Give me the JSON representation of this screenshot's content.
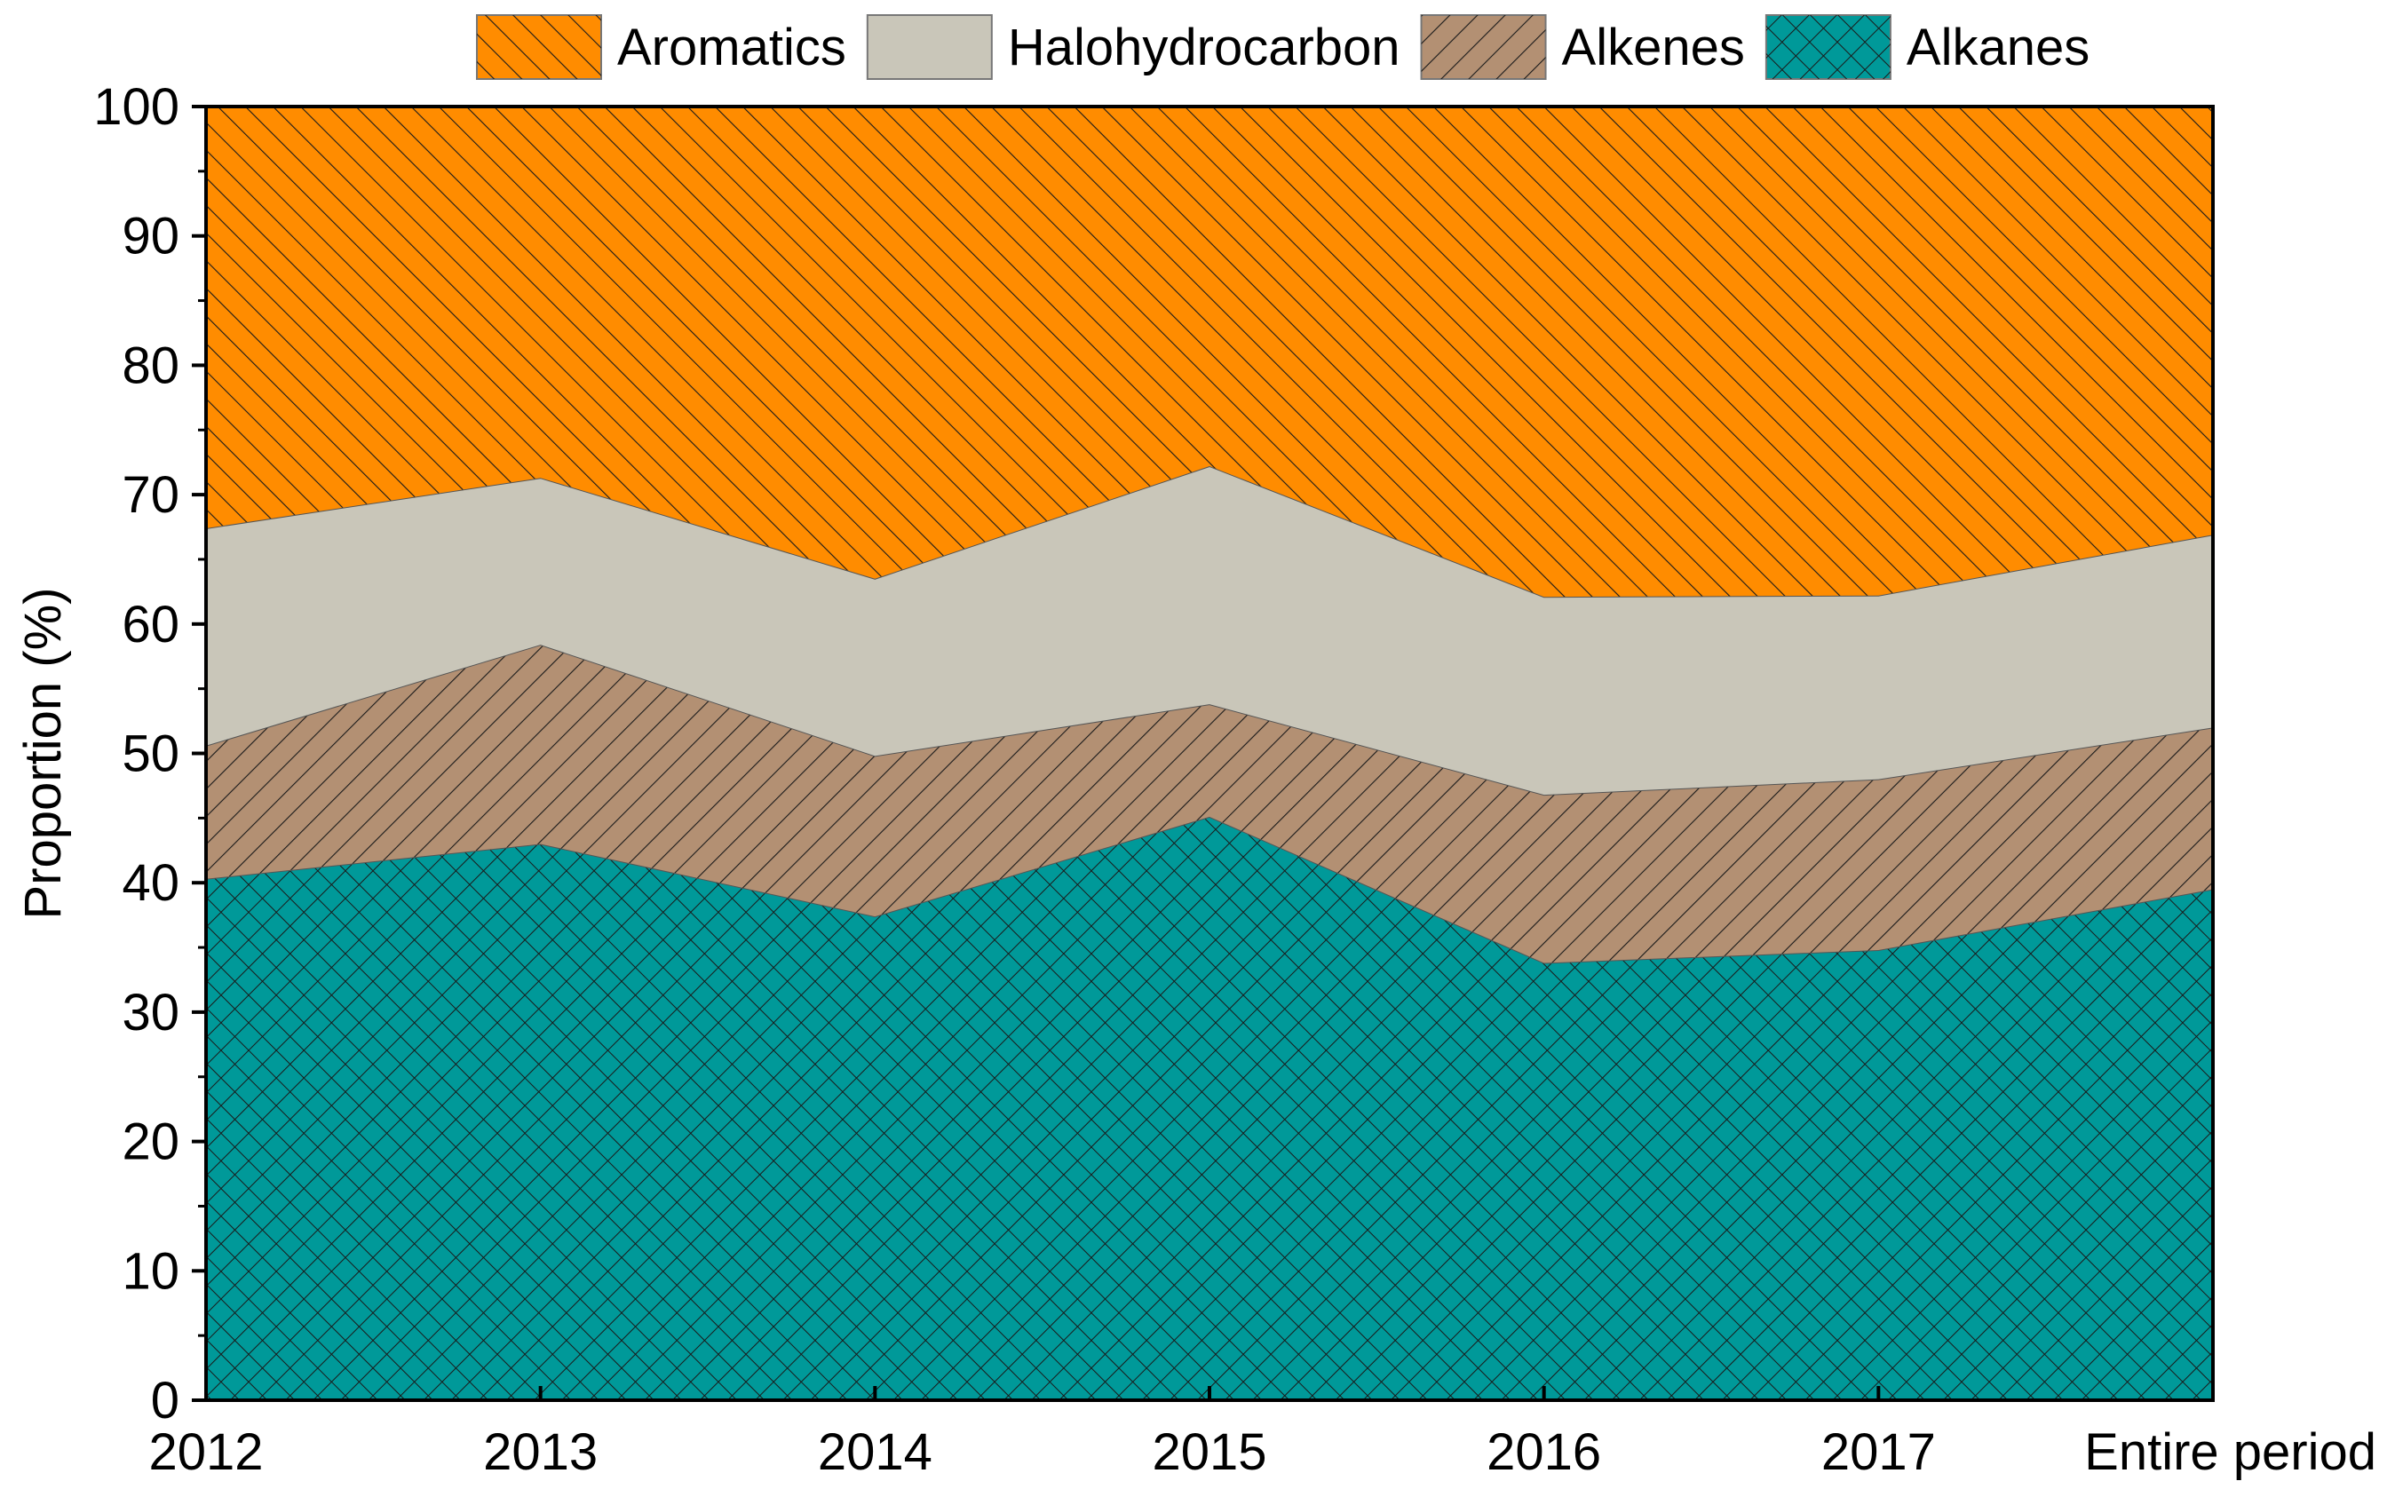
{
  "chart_data": {
    "type": "area",
    "stacked": true,
    "title": "",
    "xlabel": "",
    "ylabel": "Proportion (%)",
    "ylim": [
      0,
      100
    ],
    "yticks": [
      0,
      10,
      20,
      30,
      40,
      50,
      60,
      70,
      80,
      90,
      100
    ],
    "categories": [
      "2012",
      "2013",
      "2014",
      "2015",
      "2016",
      "2017",
      "Entire period"
    ],
    "series": [
      {
        "name": "Alkanes",
        "key": "alkanes",
        "color": "#009999",
        "pattern": "crosshatch",
        "values": [
          40.3,
          43.0,
          37.4,
          45.1,
          33.8,
          34.8,
          39.5
        ]
      },
      {
        "name": "Alkenes",
        "key": "alkenes",
        "color": "#B39073",
        "pattern": "backslash",
        "values": [
          10.3,
          15.4,
          12.4,
          8.7,
          13.0,
          13.2,
          12.5
        ]
      },
      {
        "name": "Halohydrocarbon",
        "key": "halohydrocarbon",
        "color": "#C9C6B9",
        "pattern": "none",
        "values": [
          16.8,
          12.9,
          13.7,
          18.4,
          15.3,
          14.2,
          14.9
        ]
      },
      {
        "name": "Aromatics",
        "key": "aromatics",
        "color": "#FF8C00",
        "pattern": "slash",
        "values": [
          32.6,
          28.7,
          36.5,
          27.8,
          37.9,
          37.8,
          33.1
        ]
      }
    ],
    "legend_order": [
      "aromatics",
      "halohydrocarbon",
      "alkenes",
      "alkanes"
    ],
    "legend_position": "top-right",
    "grid": false
  }
}
